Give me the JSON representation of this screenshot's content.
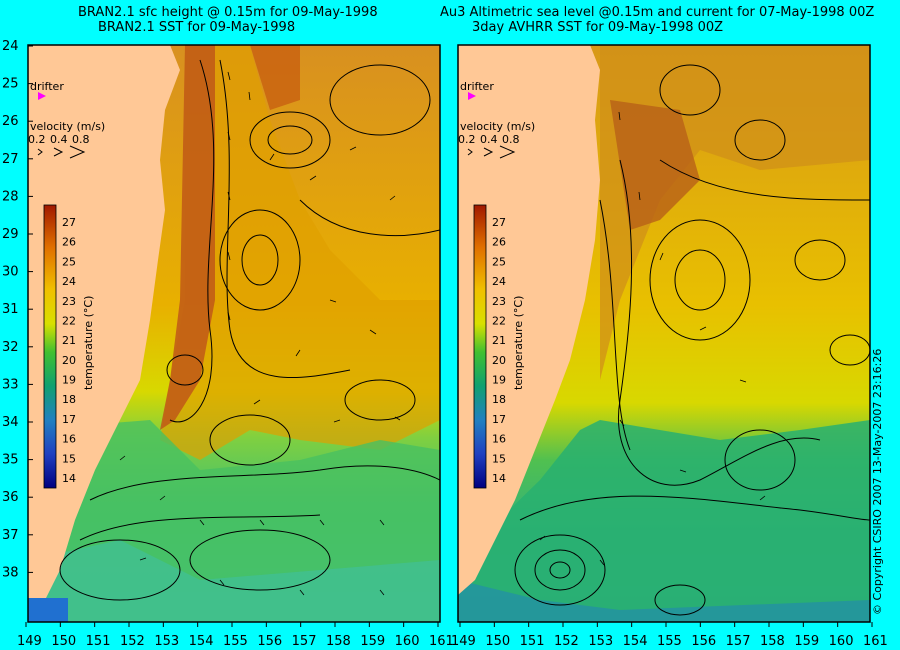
{
  "left_panel": {
    "title_line1": "BRAN2.1 sfc height @ 0.15m for 09-May-1998",
    "title_line2": "BRAN2.1 SST for 09-May-1998"
  },
  "right_panel": {
    "title_line1": "Au3 Altimetric sea level  @0.15m and current for 07-May-1998 00Z",
    "title_line2": "3day AVHRR SST for 09-May-1998 00Z"
  },
  "lat_labels": [
    "24",
    "25",
    "26",
    "27",
    "28",
    "29",
    "30",
    "31",
    "32",
    "33",
    "34",
    "35",
    "36",
    "37",
    "38"
  ],
  "lon_labels_left": [
    "149",
    "150",
    "151",
    "152",
    "153",
    "154",
    "155",
    "156",
    "157",
    "158",
    "159",
    "160",
    "161"
  ],
  "lon_labels_right": [
    "149",
    "150",
    "151",
    "152",
    "153",
    "154",
    "155",
    "156",
    "157",
    "158",
    "159",
    "160",
    "161"
  ],
  "drifter_label": "drifter",
  "velocity": {
    "label": "velocity (m/s)",
    "values": [
      "0.2",
      "0.4",
      "0.8"
    ]
  },
  "colorbar": {
    "title": "temperature (°C)",
    "ticks": [
      "27",
      "26",
      "25",
      "24",
      "23",
      "22",
      "21",
      "20",
      "19",
      "18",
      "17",
      "16",
      "15",
      "14"
    ]
  },
  "copyright": "© Copyright CSIRO 2007   13-May-2007 23:16:26",
  "colors": {
    "background": "#00ffff",
    "land": "#ffc896",
    "warm": "#c85a10",
    "mid": "#e8b400",
    "green": "#3cc83c",
    "drifter": "#ff00ff"
  }
}
